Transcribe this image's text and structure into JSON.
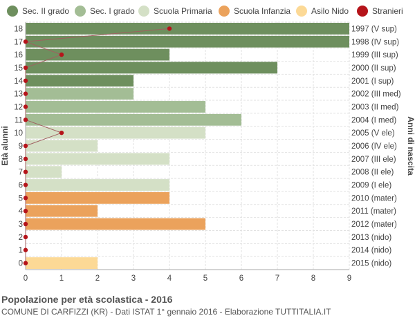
{
  "legend": [
    {
      "label": "Sec. II grado",
      "color": "#6e8f5e"
    },
    {
      "label": "Sec. I grado",
      "color": "#a3bd95"
    },
    {
      "label": "Scuola Primaria",
      "color": "#d4e0c6"
    },
    {
      "label": "Scuola Infanzia",
      "color": "#eba25c"
    },
    {
      "label": "Asilo Nido",
      "color": "#fcd996"
    },
    {
      "label": "Stranieri",
      "color": "#b5141a"
    }
  ],
  "footer": {
    "title": "Popolazione per età scolastica - 2016",
    "subtitle": "COMUNE DI CARFIZZI (KR) - Dati ISTAT 1° gennaio 2016 - Elaborazione TUTTITALIA.IT"
  },
  "chart_data": {
    "type": "bar",
    "orientation": "horizontal",
    "ylabel": "Età alunni",
    "ylabel_right": "Anni di nascita",
    "xlim": [
      0,
      9
    ],
    "xticks": [
      "0",
      "1",
      "2",
      "3",
      "4",
      "5",
      "6",
      "7",
      "8",
      "9"
    ],
    "grid": true,
    "legend_position": "top",
    "categories": [
      "18",
      "17",
      "16",
      "15",
      "14",
      "13",
      "12",
      "11",
      "10",
      "9",
      "8",
      "7",
      "6",
      "5",
      "4",
      "3",
      "2",
      "1",
      "0"
    ],
    "birth_years": [
      "1997 (V sup)",
      "1998 (IV sup)",
      "1999 (III sup)",
      "2000 (II sup)",
      "2001 (I sup)",
      "2002 (III med)",
      "2003 (II med)",
      "2004 (I med)",
      "2005 (V ele)",
      "2006 (IV ele)",
      "2007 (III ele)",
      "2008 (II ele)",
      "2009 (I ele)",
      "2010 (mater)",
      "2011 (mater)",
      "2012 (mater)",
      "2013 (nido)",
      "2014 (nido)",
      "2015 (nido)"
    ],
    "values": [
      9,
      9,
      4,
      7,
      3,
      3,
      5,
      6,
      5,
      2,
      4,
      1,
      4,
      4,
      2,
      5,
      0,
      0,
      2
    ],
    "bar_groups": [
      "Sec. II grado",
      "Sec. II grado",
      "Sec. II grado",
      "Sec. II grado",
      "Sec. II grado",
      "Sec. I grado",
      "Sec. I grado",
      "Sec. I grado",
      "Scuola Primaria",
      "Scuola Primaria",
      "Scuola Primaria",
      "Scuola Primaria",
      "Scuola Primaria",
      "Scuola Infanzia",
      "Scuola Infanzia",
      "Scuola Infanzia",
      "Asilo Nido",
      "Asilo Nido",
      "Asilo Nido"
    ],
    "stranieri": [
      4,
      0,
      1,
      0,
      0,
      0,
      0,
      0,
      1,
      0,
      0,
      0,
      0,
      0,
      0,
      0,
      0,
      0,
      0
    ]
  }
}
